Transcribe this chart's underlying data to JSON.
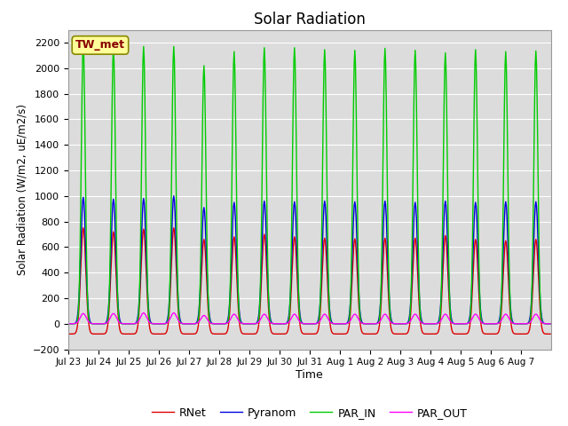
{
  "title": "Solar Radiation",
  "ylabel": "Solar Radiation (W/m2, uE/m2/s)",
  "xlabel": "Time",
  "ylim": [
    -200,
    2300
  ],
  "yticks": [
    -200,
    0,
    200,
    400,
    600,
    800,
    1000,
    1200,
    1400,
    1600,
    1800,
    2000,
    2200
  ],
  "legend_labels": [
    "RNet",
    "Pyranom",
    "PAR_IN",
    "PAR_OUT"
  ],
  "legend_colors": [
    "#dd0000",
    "#0000dd",
    "#00cc00",
    "#ff00ff"
  ],
  "station_label": "TW_met",
  "station_box_facecolor": "#ffff99",
  "station_box_edgecolor": "#888800",
  "bg_color": "#dcdcdc",
  "grid_color": "#ffffff",
  "n_days": 16,
  "rnet_peaks": [
    750,
    720,
    740,
    750,
    660,
    680,
    700,
    680,
    670,
    665,
    670,
    670,
    690,
    660,
    650,
    660
  ],
  "pyranom_peaks": [
    990,
    975,
    980,
    1000,
    910,
    950,
    960,
    955,
    960,
    955,
    960,
    950,
    960,
    950,
    955,
    955
  ],
  "par_in_peaks": [
    2190,
    2160,
    2170,
    2170,
    2020,
    2130,
    2160,
    2160,
    2145,
    2140,
    2155,
    2140,
    2120,
    2145,
    2130,
    2135
  ],
  "par_out_peaks": [
    80,
    80,
    85,
    85,
    65,
    75,
    75,
    75,
    75,
    75,
    75,
    75,
    75,
    75,
    75,
    75
  ],
  "tick_labels": [
    "Jul 23",
    "Jul 24",
    "Jul 25",
    "Jul 26",
    "Jul 27",
    "Jul 28",
    "Jul 29",
    "Jul 30",
    "Jul 31",
    "Aug 1",
    "Aug 2",
    "Aug 3",
    "Aug 4",
    "Aug 5",
    "Aug 6",
    "Aug 7"
  ],
  "figsize": [
    6.4,
    4.8
  ],
  "dpi": 100
}
